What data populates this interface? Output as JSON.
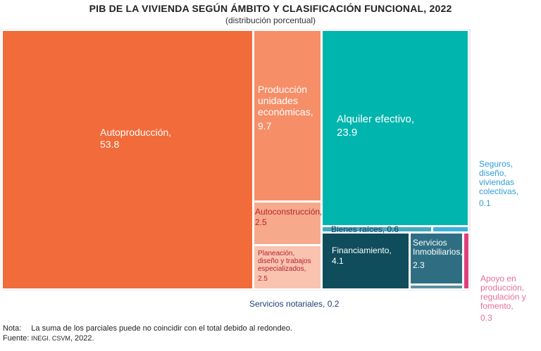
{
  "chart_data": {
    "type": "treemap",
    "title_bold": "PIB",
    "title_rest": "DE LA VIVIENDA SEGÚN ÁMBITO Y CLASIFICACIÓN FUNCIONAL, 2022",
    "subtitle": "(distribución porcentual)",
    "colors": {
      "autoproduccion": "#F26B3A",
      "produccion": "#F68E68",
      "autoconstruccion": "#F7A98C",
      "planeacion": "#F9C3AF",
      "alquiler": "#00B5AE",
      "bienes_raices": "#45A9BC",
      "seguros": "#3DB0D8",
      "financiamiento": "#0F4C5C",
      "servicios_inmob": "#2F6E82",
      "servicios_notariales": "#5A8FA0",
      "apoyo": "#E0407A",
      "label_seguros": "#2E9FD3",
      "label_apoyo": "#E46F98",
      "label_notariales": "#1F3F73",
      "label_dark_red": "#B3262A",
      "label_navy": "#213B64"
    },
    "segments": [
      {
        "key": "autoproduccion",
        "name": "Autoproducción,",
        "value": "53.8"
      },
      {
        "key": "produccion",
        "name": "Producción unidades económicas,",
        "name_lines": [
          "Producción",
          "unidades",
          "económicas,"
        ],
        "value": "9.7"
      },
      {
        "key": "autoconstruccion",
        "name": "Autoconstrucción,",
        "value": "2.5"
      },
      {
        "key": "planeacion",
        "name": "Planeación, diseño y trabajos especializados,",
        "name_lines": [
          "Planeación,",
          "diseño y trabajos",
          "especializados,"
        ],
        "value": "2.5"
      },
      {
        "key": "alquiler",
        "name": "Alquiler efectivo,",
        "value": "23.9"
      },
      {
        "key": "bienes_raices",
        "name": "Bienes raíces,",
        "value": "0.6"
      },
      {
        "key": "seguros",
        "name": "Seguros, diseño, viviendas colectivas,",
        "name_lines": [
          "Seguros,",
          "diseño,",
          "viviendas",
          "colectivas,"
        ],
        "value": "0.1"
      },
      {
        "key": "financiamiento",
        "name": "Financiamiento,",
        "value": "4.1"
      },
      {
        "key": "servicios_inmob",
        "name": "Servicios Inmobiliarios,",
        "name_lines": [
          "Servicios",
          "Inmobiliarios,"
        ],
        "value": "2.3"
      },
      {
        "key": "servicios_notariales",
        "name": "Servicios notariales,",
        "value": "0.2"
      },
      {
        "key": "apoyo",
        "name": "Apoyo en producción, regulación y fomento,",
        "name_lines": [
          "Apoyo en",
          "producción,",
          "regulación y",
          "fomento,"
        ],
        "value": "0.3"
      }
    ]
  },
  "notes": {
    "nota_label": "Nota:",
    "nota_text": "La suma de los parciales puede no coincidir con el total debido al redondeo.",
    "fuente_label": "Fuente:",
    "fuente_org": "INEGI. CSVM",
    "fuente_year": ", 2022."
  }
}
